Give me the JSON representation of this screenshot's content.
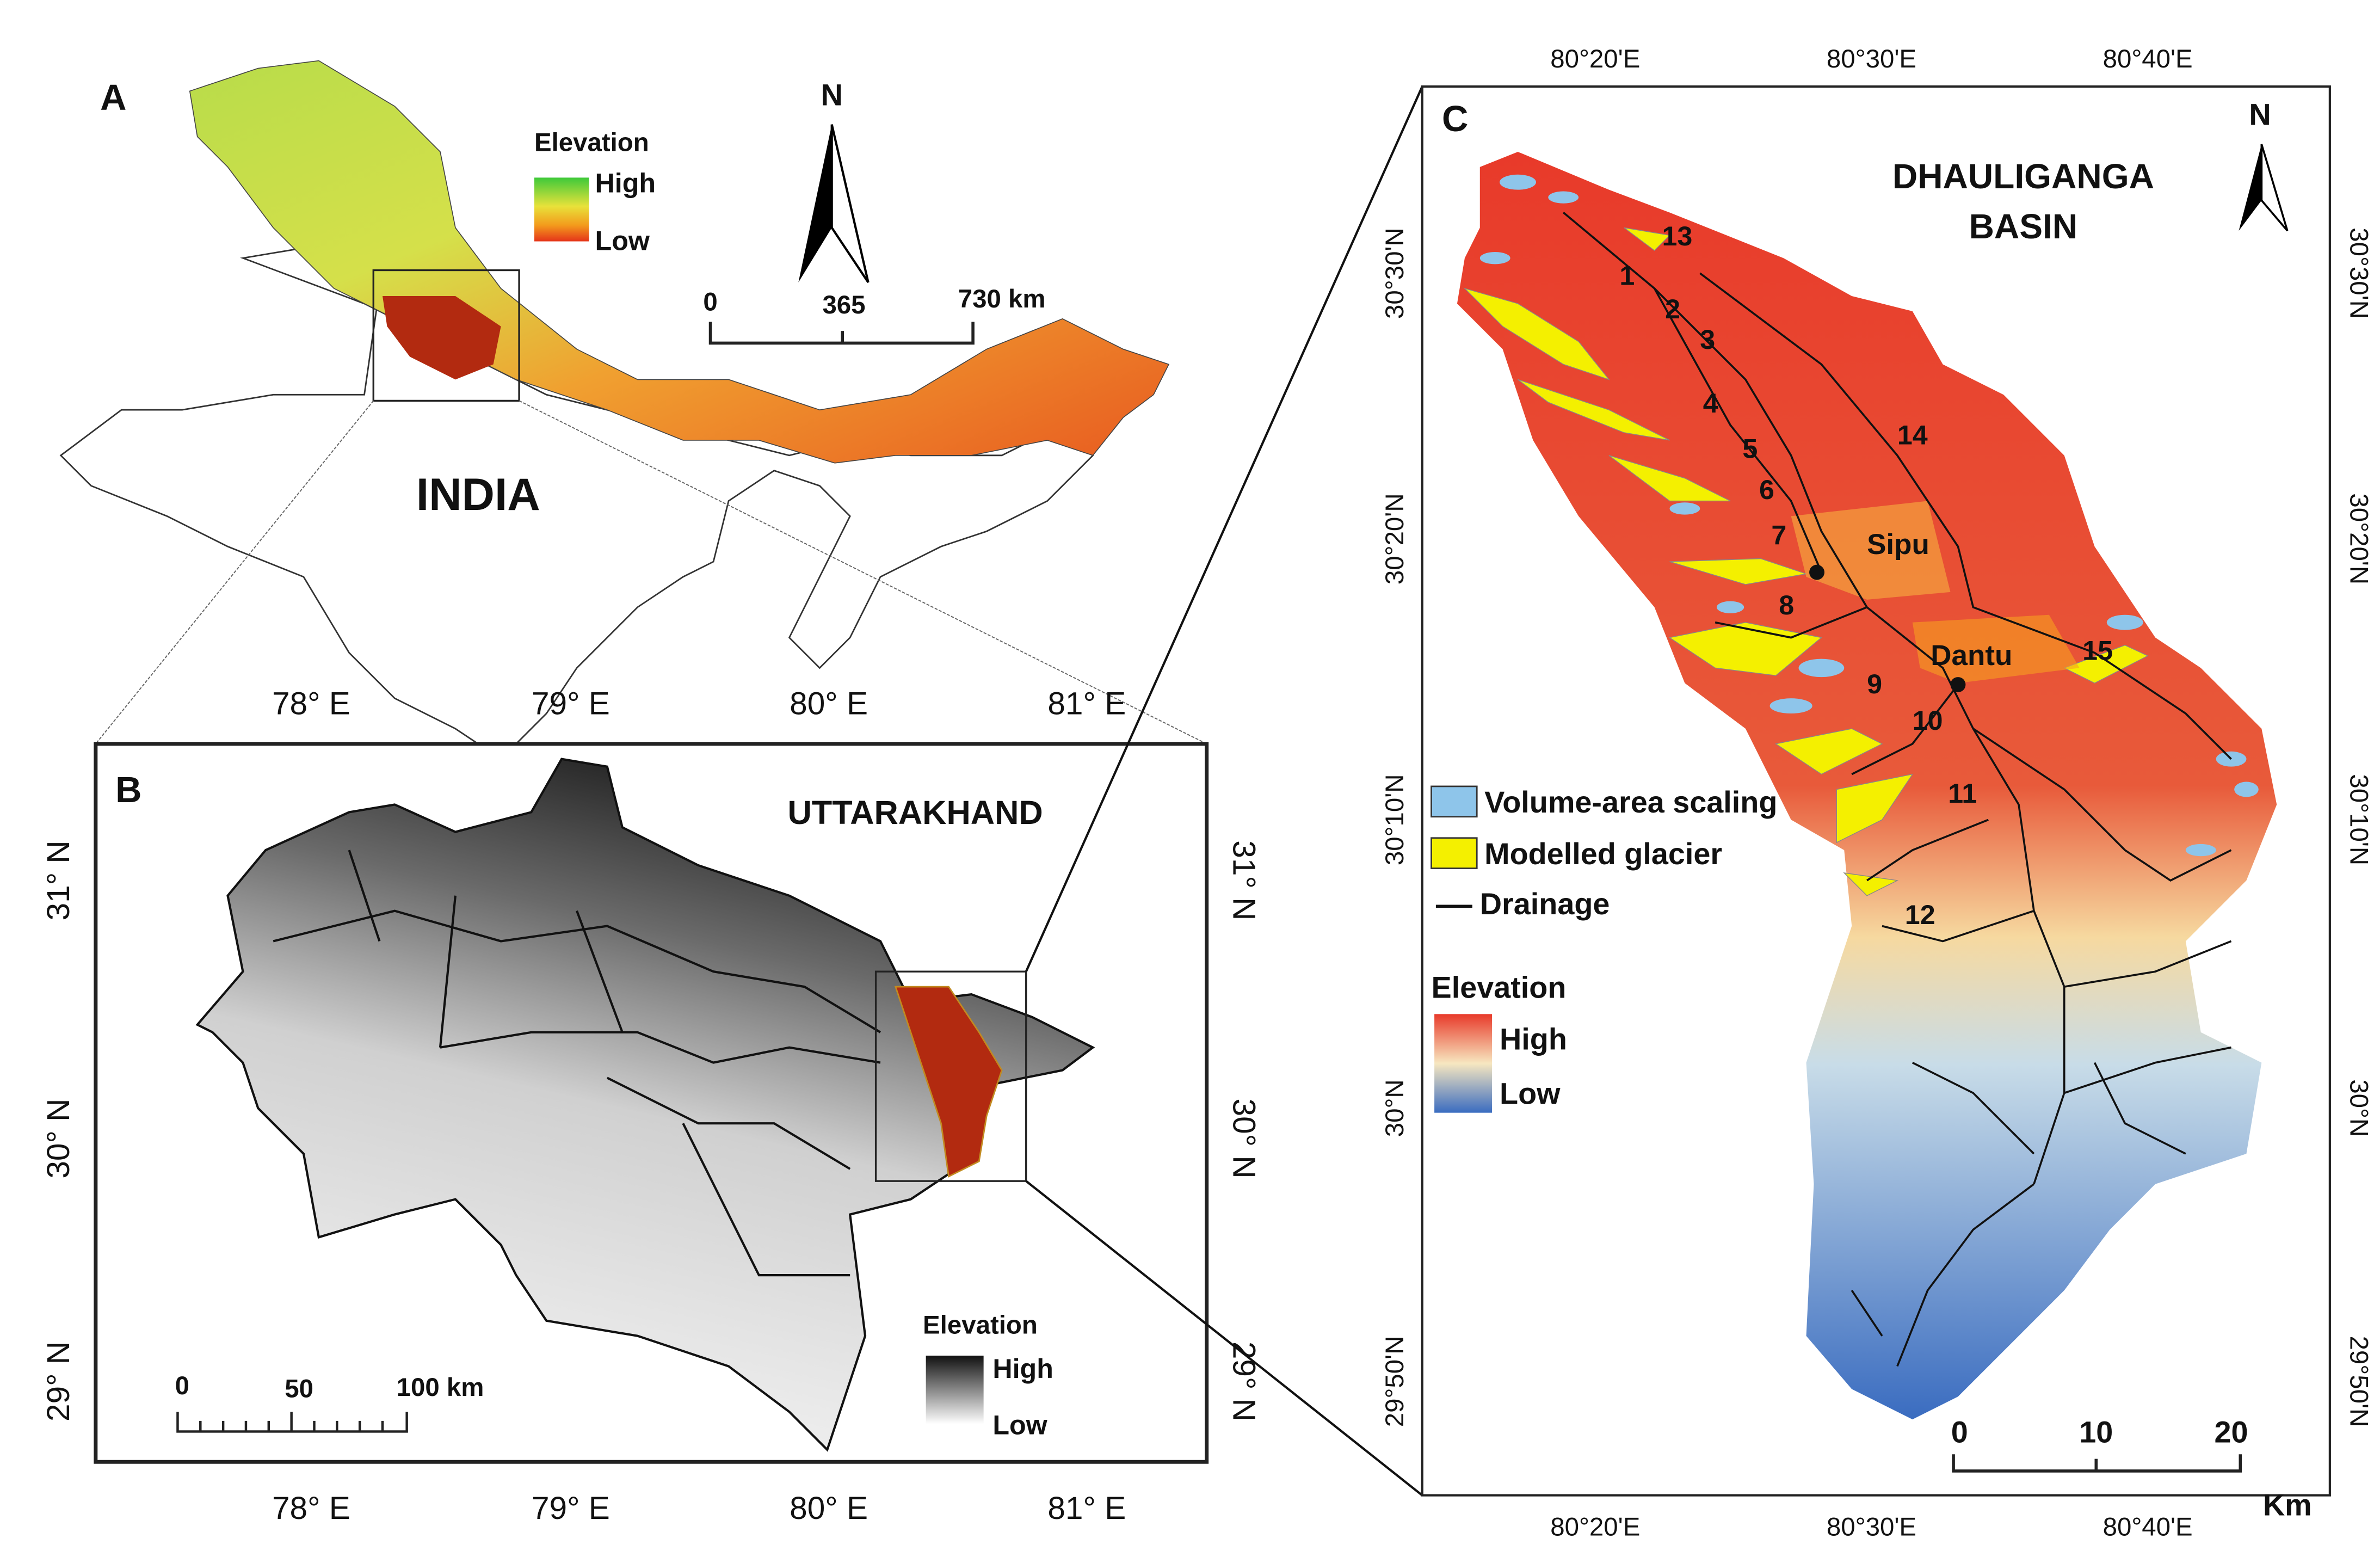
{
  "panel_a": {
    "label": "A",
    "country": "INDIA",
    "legend": {
      "title": "Elevation",
      "high": "High",
      "low": "Low"
    },
    "north": "N",
    "scale_bar": [
      "0",
      "365",
      "730 km"
    ]
  },
  "panel_b": {
    "label": "B",
    "region": "UTTARAKHAND",
    "lon_ticks": [
      "78° E",
      "79° E",
      "80° E",
      "81° E"
    ],
    "lat_ticks": [
      "31° N",
      "30° N",
      "29° N"
    ],
    "legend": {
      "title": "Elevation",
      "high": "High",
      "low": "Low"
    },
    "scale_bar": [
      "0",
      "50",
      "100 km"
    ]
  },
  "panel_c": {
    "label": "C",
    "title": [
      "DHAULIGANGA",
      "BASIN"
    ],
    "north": "N",
    "lon_ticks": [
      "80°20'E",
      "80°30'E",
      "80°40'E"
    ],
    "lat_ticks": [
      "30°30'N",
      "30°20'N",
      "30°10'N",
      "30°N",
      "29°50'N"
    ],
    "legend": [
      "Volume-area scaling",
      "Modelled glacier",
      "Drainage"
    ],
    "elevation_legend": {
      "title": "Elevation",
      "high": "High",
      "low": "Low"
    },
    "scale_bar": [
      "0",
      "10",
      "20",
      "Km"
    ],
    "places": [
      "Sipu",
      "Dantu"
    ],
    "glaciers": [
      "1",
      "2",
      "3",
      "4",
      "5",
      "6",
      "7",
      "8",
      "9",
      "10",
      "11",
      "12",
      "13",
      "14",
      "15"
    ]
  }
}
